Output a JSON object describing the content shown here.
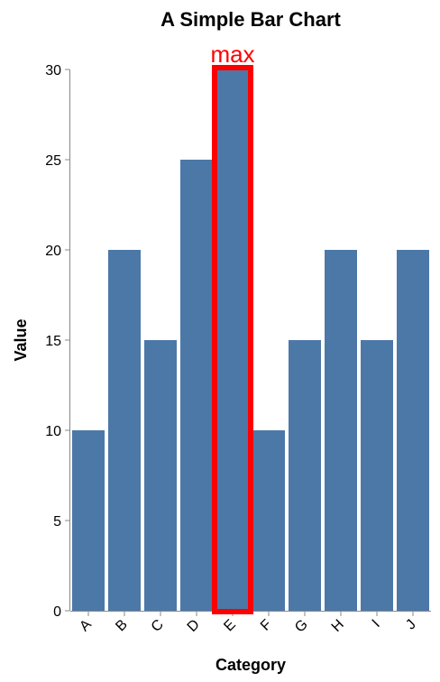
{
  "chart_data": {
    "type": "bar",
    "title": "A Simple Bar Chart",
    "xlabel": "Category",
    "ylabel": "Value",
    "categories": [
      "A",
      "B",
      "C",
      "D",
      "E",
      "F",
      "G",
      "H",
      "I",
      "J"
    ],
    "values": [
      10,
      20,
      15,
      25,
      30,
      10,
      15,
      20,
      15,
      20
    ],
    "ylim": [
      0,
      30
    ],
    "yticks": [
      0,
      5,
      10,
      15,
      20,
      25,
      30
    ],
    "grid": false,
    "bar_color": "#4c78a8",
    "highlight": {
      "category": "E",
      "label": "max",
      "color": "#ff0000"
    }
  }
}
